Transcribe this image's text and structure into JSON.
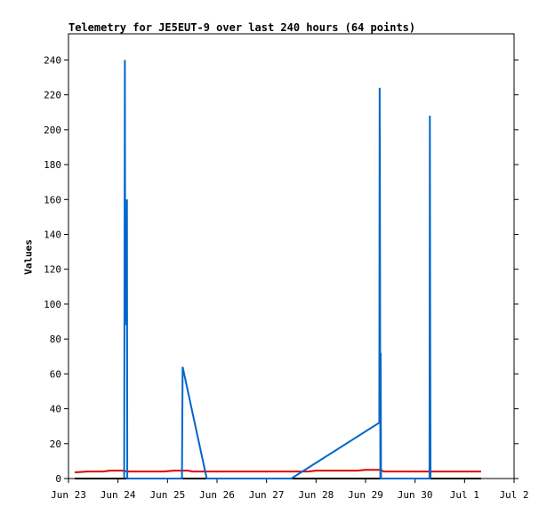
{
  "chart_data": {
    "type": "line",
    "title": "Telemetry for JE5EUT-9 over last 240 hours (64 points)",
    "xlabel": "",
    "ylabel": "Values",
    "ylim": [
      0,
      255
    ],
    "xlim": [
      "2022-06-23 00:00",
      "2022-07-02 00:00"
    ],
    "yticks": [
      0,
      20,
      40,
      60,
      80,
      100,
      120,
      140,
      160,
      180,
      200,
      220,
      240
    ],
    "xticks": [
      {
        "x": "2022-06-23 00:00",
        "label": "Jun 23"
      },
      {
        "x": "2022-06-24 00:00",
        "label": "Jun 24"
      },
      {
        "x": "2022-06-25 00:00",
        "label": "Jun 25"
      },
      {
        "x": "2022-06-26 00:00",
        "label": "Jun 26"
      },
      {
        "x": "2022-06-27 00:00",
        "label": "Jun 27"
      },
      {
        "x": "2022-06-28 00:00",
        "label": "Jun 28"
      },
      {
        "x": "2022-06-29 00:00",
        "label": "Jun 29"
      },
      {
        "x": "2022-06-30 00:00",
        "label": "Jun 30"
      },
      {
        "x": "2022-07-01 00:00",
        "label": "Jul 1"
      },
      {
        "x": "2022-07-02 00:00",
        "label": "Jul 2"
      }
    ],
    "grid": false,
    "series": [
      {
        "color": "#000000",
        "points": [
          [
            "2022-06-23 03:00",
            0
          ],
          [
            "2022-07-01 08:00",
            0
          ]
        ]
      },
      {
        "color": "#dd0000",
        "points": [
          [
            "2022-06-23 03:00",
            3.5
          ],
          [
            "2022-06-23 09:00",
            4
          ],
          [
            "2022-06-23 17:00",
            4
          ],
          [
            "2022-06-23 20:00",
            4.5
          ],
          [
            "2022-06-24 02:00",
            4.5
          ],
          [
            "2022-06-24 05:00",
            4
          ],
          [
            "2022-06-24 22:00",
            4
          ],
          [
            "2022-06-25 03:00",
            4.5
          ],
          [
            "2022-06-25 10:00",
            4.5
          ],
          [
            "2022-06-25 12:00",
            4
          ],
          [
            "2022-06-27 20:00",
            4
          ],
          [
            "2022-06-28 00:00",
            4.5
          ],
          [
            "2022-06-28 20:00",
            4.5
          ],
          [
            "2022-06-29 00:00",
            5
          ],
          [
            "2022-06-29 07:00",
            5
          ],
          [
            "2022-06-29 09:00",
            4
          ],
          [
            "2022-07-01 08:00",
            4
          ]
        ]
      },
      {
        "color": "#0066cc",
        "points": [
          [
            "2022-06-24 03:00",
            0
          ],
          [
            "2022-06-24 03:10",
            120
          ],
          [
            "2022-06-24 03:20",
            240
          ],
          [
            "2022-06-24 03:30",
            88
          ],
          [
            "2022-06-24 03:50",
            120
          ],
          [
            "2022-06-24 04:00",
            136
          ],
          [
            "2022-06-24 04:10",
            104
          ],
          [
            "2022-06-24 04:20",
            160
          ],
          [
            "2022-06-24 04:30",
            0
          ],
          [
            "2022-06-25 07:00",
            0
          ],
          [
            "2022-06-25 07:20",
            64
          ],
          [
            "2022-06-25 19:00",
            0
          ],
          [
            "2022-06-27 12:00",
            0
          ],
          [
            "2022-06-29 06:40",
            32
          ],
          [
            "2022-06-29 06:50",
            224
          ],
          [
            "2022-06-29 07:00",
            144
          ],
          [
            "2022-06-29 07:10",
            0
          ],
          [
            "2022-06-29 07:20",
            72
          ],
          [
            "2022-06-29 07:30",
            0
          ],
          [
            "2022-06-30 07:00",
            0
          ],
          [
            "2022-06-30 07:10",
            208
          ],
          [
            "2022-06-30 07:20",
            80
          ],
          [
            "2022-06-30 07:30",
            0
          ]
        ]
      }
    ]
  }
}
